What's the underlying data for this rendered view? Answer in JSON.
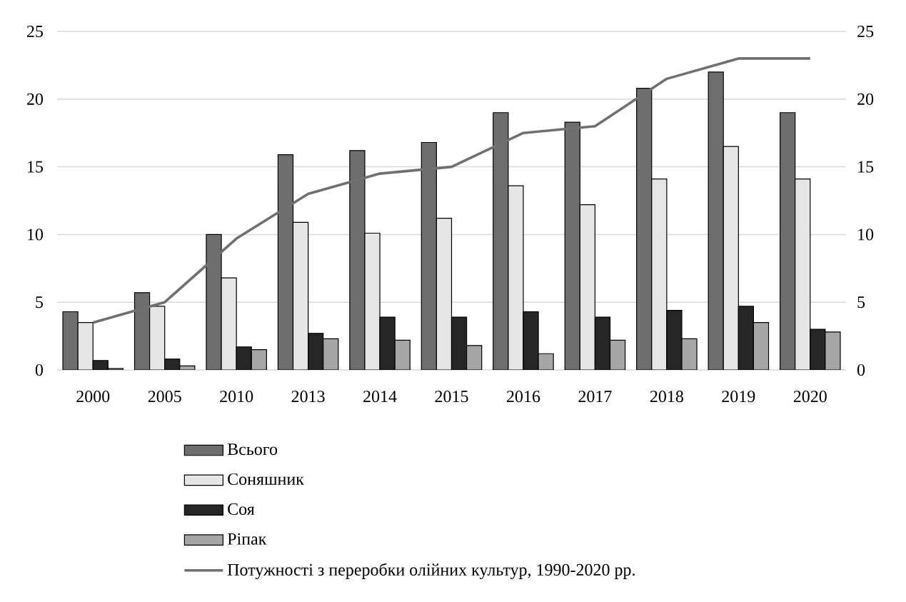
{
  "chart_data": {
    "type": "bar",
    "categories": [
      "2000",
      "2005",
      "2010",
      "2013",
      "2014",
      "2015",
      "2016",
      "2017",
      "2018",
      "2019",
      "2020"
    ],
    "series": [
      {
        "name": "Всього",
        "color": "#6e6e6e",
        "values": [
          4.3,
          5.7,
          10.0,
          15.9,
          16.2,
          16.8,
          19.0,
          18.3,
          20.8,
          22.0,
          19.0
        ]
      },
      {
        "name": "Соняшник",
        "color": "#e6e6e6",
        "values": [
          3.5,
          4.7,
          6.8,
          10.9,
          10.1,
          11.2,
          13.6,
          12.2,
          14.1,
          16.5,
          14.1
        ]
      },
      {
        "name": "Соя",
        "color": "#262626",
        "values": [
          0.7,
          0.8,
          1.7,
          2.7,
          3.9,
          3.9,
          4.3,
          3.9,
          4.4,
          4.7,
          3.0
        ]
      },
      {
        "name": "Ріпак",
        "color": "#a6a6a6",
        "values": [
          0.1,
          0.3,
          1.5,
          2.3,
          2.2,
          1.8,
          1.2,
          2.2,
          2.3,
          3.5,
          2.8
        ]
      },
      {
        "name": "Потужності з переробки олійних культур, 1990-2020 рр.",
        "type": "line",
        "axis": "y2",
        "color": "#707070",
        "values": [
          3.5,
          5.0,
          9.7,
          13.0,
          14.5,
          15.0,
          17.5,
          18.0,
          21.5,
          23.0,
          23.0
        ]
      }
    ],
    "ylim": [
      0,
      25
    ],
    "yticks": [
      0,
      5,
      10,
      15,
      20,
      25
    ],
    "y2lim": [
      0,
      25
    ],
    "y2ticks": [
      0,
      5,
      10,
      15,
      20,
      25
    ],
    "grid": "y",
    "legend": "bottom",
    "marker": "none",
    "line_style": "solid"
  }
}
